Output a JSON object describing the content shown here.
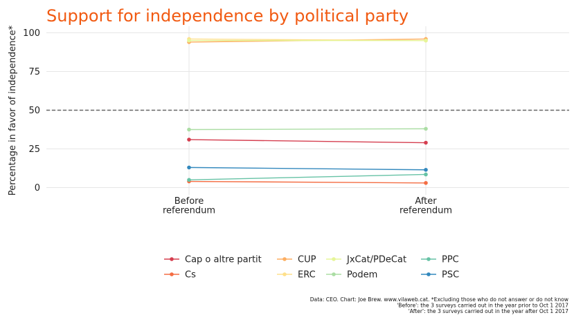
{
  "chart_data": {
    "type": "line",
    "title": "Support for independence by political party",
    "xlabel": "",
    "ylabel": "Percentage in favor of independence*",
    "categories": [
      [
        "Before",
        "referendum"
      ],
      [
        "After",
        "referendum"
      ]
    ],
    "ylim": [
      0,
      100
    ],
    "yticks": [
      0,
      25,
      50,
      75,
      100
    ],
    "reference_line": {
      "y": 50,
      "style": "dashed"
    },
    "grid": true,
    "legend_position": "bottom",
    "series": [
      {
        "name": "Cap o altre partit",
        "color": "#d53e4f",
        "values": [
          31,
          29
        ]
      },
      {
        "name": "Cs",
        "color": "#f46d43",
        "values": [
          4,
          3
        ]
      },
      {
        "name": "CUP",
        "color": "#fdae61",
        "values": [
          94,
          96
        ]
      },
      {
        "name": "ERC",
        "color": "#fee08b",
        "values": [
          96,
          95
        ]
      },
      {
        "name": "JxCat/PDeCat",
        "color": "#e6f598",
        "values": [
          95,
          95
        ]
      },
      {
        "name": "Podem",
        "color": "#abdda4",
        "values": [
          37.5,
          38
        ]
      },
      {
        "name": "PPC",
        "color": "#66c2a5",
        "values": [
          5,
          8.5
        ]
      },
      {
        "name": "PSC",
        "color": "#3288bd",
        "values": [
          13,
          11.5
        ]
      }
    ],
    "legend_columns": [
      [
        "Cap o altre partit",
        "Cs"
      ],
      [
        "CUP",
        "ERC"
      ],
      [
        "JxCat/PDeCat",
        "Podem"
      ],
      [
        "PPC",
        "PSC"
      ]
    ],
    "caption": [
      "Data: CEO. Chart: Joe Brew. www.vilaweb.cat. *Excluding those who do not answer or do not know",
      "'Before': the 3 surveys carried out in the year prior to Oct 1 2017",
      "'After': the 3 surveys carried out in the year after Oct 1 2017"
    ]
  }
}
